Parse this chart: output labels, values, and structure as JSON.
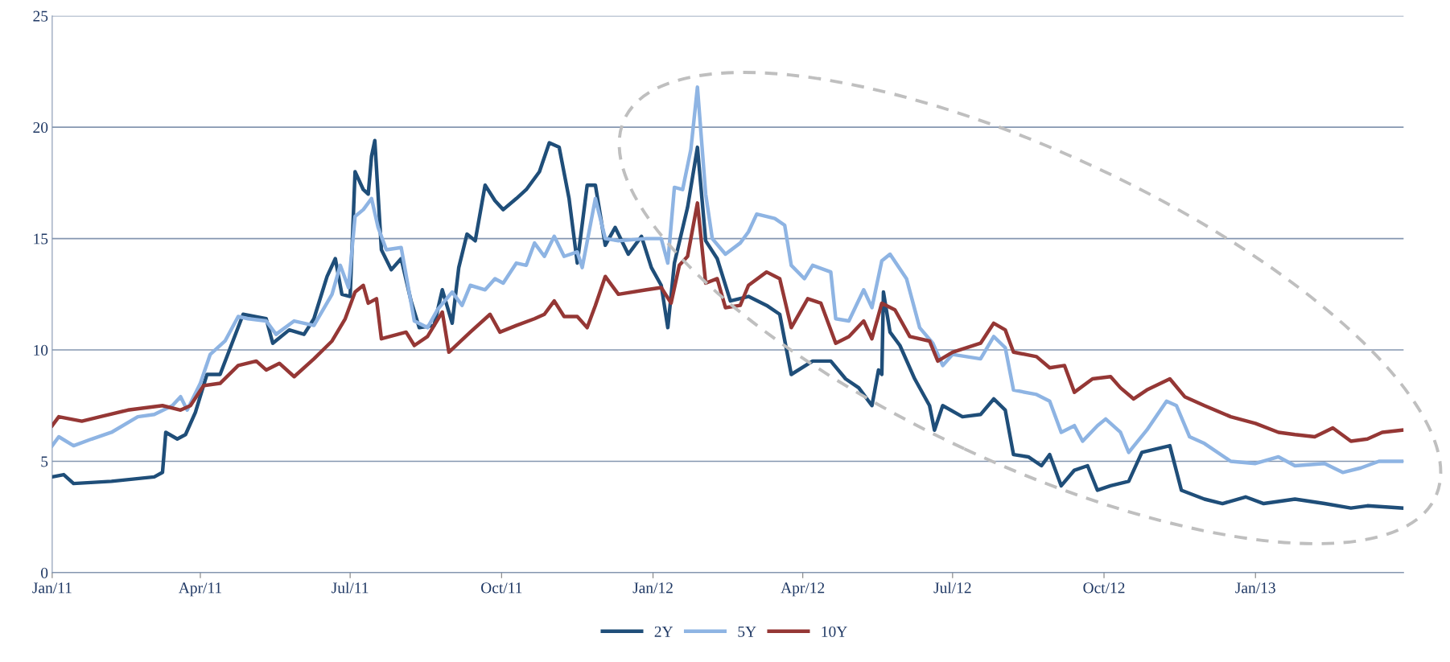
{
  "chart_data": {
    "type": "line",
    "xlim": [
      "2011-01-01",
      "2013-04-01"
    ],
    "xticks": [
      {
        "value": "2011-01-01",
        "label": "Jan/11"
      },
      {
        "value": "2011-04-01",
        "label": "Apr/11"
      },
      {
        "value": "2011-07-01",
        "label": "Jul/11"
      },
      {
        "value": "2011-10-01",
        "label": "Oct/11"
      },
      {
        "value": "2012-01-01",
        "label": "Jan/12"
      },
      {
        "value": "2012-04-01",
        "label": "Apr/12"
      },
      {
        "value": "2012-07-01",
        "label": "Jul/12"
      },
      {
        "value": "2012-10-01",
        "label": "Oct/12"
      },
      {
        "value": "2013-01-01",
        "label": "Jan/13"
      }
    ],
    "ylim": [
      0,
      25
    ],
    "yticks": [
      0,
      5,
      10,
      15,
      20,
      25
    ],
    "grid": "y",
    "legend": "bottom",
    "marker": "none",
    "line_style": "solid",
    "series": [
      {
        "name": "2Y",
        "color": "#1f4e79",
        "x": [
          "2011-01-01",
          "2011-01-08",
          "2011-01-14",
          "2011-02-06",
          "2011-03-04",
          "2011-03-09",
          "2011-03-11",
          "2011-03-18",
          "2011-03-23",
          "2011-03-29",
          "2011-04-05",
          "2011-04-13",
          "2011-04-27",
          "2011-05-11",
          "2011-05-15",
          "2011-05-25",
          "2011-06-03",
          "2011-06-09",
          "2011-06-17",
          "2011-06-22",
          "2011-06-26",
          "2011-07-01",
          "2011-07-04",
          "2011-07-09",
          "2011-07-12",
          "2011-07-14",
          "2011-07-16",
          "2011-07-20",
          "2011-07-26",
          "2011-08-01",
          "2011-08-07",
          "2011-08-12",
          "2011-08-21",
          "2011-08-26",
          "2011-09-01",
          "2011-09-05",
          "2011-09-10",
          "2011-09-15",
          "2011-09-21",
          "2011-09-27",
          "2011-10-02",
          "2011-10-10",
          "2011-10-16",
          "2011-10-24",
          "2011-10-30",
          "2011-11-05",
          "2011-11-11",
          "2011-11-16",
          "2011-11-22",
          "2011-11-27",
          "2011-12-03",
          "2011-12-09",
          "2011-12-17",
          "2011-12-25",
          "2011-12-31",
          "2012-01-06",
          "2012-01-10",
          "2012-01-14",
          "2012-01-22",
          "2012-01-28",
          "2012-02-02",
          "2012-02-09",
          "2012-02-17",
          "2012-02-28",
          "2012-03-10",
          "2012-03-18",
          "2012-03-25",
          "2012-04-07",
          "2012-04-18",
          "2012-04-27",
          "2012-05-05",
          "2012-05-13",
          "2012-05-17",
          "2012-05-19",
          "2012-05-20",
          "2012-05-24",
          "2012-05-30",
          "2012-06-08",
          "2012-06-17",
          "2012-06-20",
          "2012-06-25",
          "2012-07-07",
          "2012-07-18",
          "2012-07-26",
          "2012-08-02",
          "2012-08-07",
          "2012-08-16",
          "2012-08-24",
          "2012-08-29",
          "2012-09-05",
          "2012-09-13",
          "2012-09-21",
          "2012-09-27",
          "2012-10-05",
          "2012-10-16",
          "2012-10-24",
          "2012-11-10",
          "2012-11-17",
          "2012-12-01",
          "2012-12-12",
          "2012-12-26",
          "2013-01-06",
          "2013-01-25",
          "2013-02-12",
          "2013-02-28",
          "2013-03-10",
          "2013-03-31"
        ],
        "values": [
          4.3,
          4.4,
          4.0,
          4.1,
          4.3,
          4.5,
          6.3,
          6.0,
          6.2,
          7.2,
          8.9,
          8.9,
          11.6,
          11.4,
          10.3,
          10.9,
          10.7,
          11.4,
          13.3,
          14.1,
          12.5,
          12.4,
          18.0,
          17.2,
          17.0,
          18.7,
          19.4,
          14.5,
          13.6,
          14.1,
          12.2,
          11.0,
          11.1,
          12.7,
          11.2,
          13.7,
          15.2,
          14.9,
          17.4,
          16.7,
          16.3,
          16.8,
          17.2,
          18.0,
          19.3,
          19.1,
          16.8,
          13.9,
          17.4,
          17.4,
          14.7,
          15.5,
          14.3,
          15.1,
          13.7,
          12.9,
          11.0,
          13.9,
          16.4,
          19.1,
          14.9,
          14.1,
          12.2,
          12.4,
          12.0,
          11.6,
          8.9,
          9.5,
          9.5,
          8.7,
          8.3,
          7.5,
          9.1,
          8.9,
          12.6,
          10.8,
          10.2,
          8.7,
          7.5,
          6.4,
          7.5,
          7.0,
          7.1,
          7.8,
          7.3,
          5.3,
          5.2,
          4.8,
          5.3,
          3.9,
          4.6,
          4.8,
          3.7,
          3.9,
          4.1,
          5.4,
          5.7,
          3.7,
          3.3,
          3.1,
          3.4,
          3.1,
          3.3,
          3.1,
          2.9,
          3.0,
          2.9
        ]
      },
      {
        "name": "5Y",
        "color": "#8eb4e3",
        "x": [
          "2011-01-01",
          "2011-01-05",
          "2011-01-14",
          "2011-01-25",
          "2011-02-06",
          "2011-02-22",
          "2011-03-04",
          "2011-03-15",
          "2011-03-20",
          "2011-03-24",
          "2011-04-01",
          "2011-04-07",
          "2011-04-16",
          "2011-04-24",
          "2011-04-30",
          "2011-05-11",
          "2011-05-17",
          "2011-05-28",
          "2011-06-09",
          "2011-06-20",
          "2011-06-25",
          "2011-06-30",
          "2011-07-04",
          "2011-07-09",
          "2011-07-14",
          "2011-07-18",
          "2011-07-23",
          "2011-08-01",
          "2011-08-09",
          "2011-08-17",
          "2011-08-23",
          "2011-09-01",
          "2011-09-07",
          "2011-09-12",
          "2011-09-21",
          "2011-09-27",
          "2011-10-02",
          "2011-10-10",
          "2011-10-16",
          "2011-10-21",
          "2011-10-27",
          "2011-11-02",
          "2011-11-08",
          "2011-11-16",
          "2011-11-19",
          "2011-11-27",
          "2011-12-03",
          "2011-12-11",
          "2011-12-28",
          "2012-01-06",
          "2012-01-10",
          "2012-01-14",
          "2012-01-19",
          "2012-01-24",
          "2012-01-28",
          "2012-02-02",
          "2012-02-06",
          "2012-02-14",
          "2012-02-23",
          "2012-02-28",
          "2012-03-04",
          "2012-03-15",
          "2012-03-21",
          "2012-03-25",
          "2012-04-02",
          "2012-04-07",
          "2012-04-18",
          "2012-04-21",
          "2012-04-29",
          "2012-05-08",
          "2012-05-13",
          "2012-05-19",
          "2012-05-24",
          "2012-06-03",
          "2012-06-11",
          "2012-06-19",
          "2012-06-25",
          "2012-07-01",
          "2012-07-18",
          "2012-07-26",
          "2012-08-02",
          "2012-08-07",
          "2012-08-21",
          "2012-08-29",
          "2012-09-05",
          "2012-09-13",
          "2012-09-18",
          "2012-09-27",
          "2012-10-02",
          "2012-10-11",
          "2012-10-16",
          "2012-10-27",
          "2012-11-08",
          "2012-11-14",
          "2012-11-22",
          "2012-12-01",
          "2012-12-17",
          "2013-01-01",
          "2013-01-15",
          "2013-01-25",
          "2013-02-12",
          "2013-02-23",
          "2013-03-06",
          "2013-03-17",
          "2013-03-31"
        ],
        "values": [
          5.7,
          6.1,
          5.7,
          6.0,
          6.3,
          7.0,
          7.1,
          7.5,
          7.9,
          7.3,
          8.5,
          9.8,
          10.4,
          11.5,
          11.4,
          11.3,
          10.7,
          11.3,
          11.1,
          12.5,
          13.8,
          12.8,
          16.0,
          16.3,
          16.8,
          15.5,
          14.5,
          14.6,
          11.3,
          11.0,
          11.8,
          12.6,
          12.0,
          12.9,
          12.7,
          13.2,
          13.0,
          13.9,
          13.8,
          14.8,
          14.2,
          15.1,
          14.2,
          14.4,
          13.7,
          16.8,
          15.0,
          14.9,
          15.0,
          15.0,
          13.9,
          17.3,
          17.2,
          19.0,
          21.8,
          17.0,
          15.0,
          14.3,
          14.8,
          15.3,
          16.1,
          15.9,
          15.6,
          13.8,
          13.2,
          13.8,
          13.5,
          11.4,
          11.3,
          12.7,
          11.9,
          14.0,
          14.3,
          13.2,
          11.0,
          10.3,
          9.3,
          9.8,
          9.6,
          10.6,
          10.1,
          8.2,
          8.0,
          7.7,
          6.3,
          6.6,
          5.9,
          6.6,
          6.9,
          6.3,
          5.4,
          6.4,
          7.7,
          7.5,
          6.1,
          5.8,
          5.0,
          4.9,
          5.2,
          4.8,
          4.9,
          4.5,
          4.7,
          5.0,
          5.0
        ]
      },
      {
        "name": "10Y",
        "color": "#953735",
        "x": [
          "2011-01-01",
          "2011-01-05",
          "2011-01-19",
          "2011-01-30",
          "2011-02-16",
          "2011-03-09",
          "2011-03-20",
          "2011-03-26",
          "2011-04-03",
          "2011-04-13",
          "2011-04-24",
          "2011-05-05",
          "2011-05-11",
          "2011-05-19",
          "2011-05-28",
          "2011-06-09",
          "2011-06-20",
          "2011-06-28",
          "2011-07-04",
          "2011-07-09",
          "2011-07-12",
          "2011-07-17",
          "2011-07-20",
          "2011-08-04",
          "2011-08-09",
          "2011-08-17",
          "2011-08-26",
          "2011-08-30",
          "2011-09-12",
          "2011-09-24",
          "2011-09-30",
          "2011-10-10",
          "2011-10-21",
          "2011-10-27",
          "2011-11-02",
          "2011-11-08",
          "2011-11-16",
          "2011-11-22",
          "2011-11-27",
          "2011-12-03",
          "2011-12-11",
          "2011-12-28",
          "2012-01-06",
          "2012-01-12",
          "2012-01-17",
          "2012-01-22",
          "2012-01-28",
          "2012-02-02",
          "2012-02-09",
          "2012-02-14",
          "2012-02-23",
          "2012-02-28",
          "2012-03-10",
          "2012-03-18",
          "2012-03-25",
          "2012-04-04",
          "2012-04-12",
          "2012-04-21",
          "2012-04-29",
          "2012-05-08",
          "2012-05-13",
          "2012-05-19",
          "2012-05-27",
          "2012-06-05",
          "2012-06-17",
          "2012-06-22",
          "2012-07-01",
          "2012-07-18",
          "2012-07-26",
          "2012-08-02",
          "2012-08-07",
          "2012-08-21",
          "2012-08-29",
          "2012-09-07",
          "2012-09-13",
          "2012-09-24",
          "2012-10-05",
          "2012-10-11",
          "2012-10-19",
          "2012-10-27",
          "2012-11-10",
          "2012-11-19",
          "2012-12-01",
          "2012-12-17",
          "2013-01-01",
          "2013-01-15",
          "2013-01-25",
          "2013-02-06",
          "2013-02-17",
          "2013-02-28",
          "2013-03-10",
          "2013-03-19",
          "2013-03-31"
        ],
        "values": [
          6.6,
          7.0,
          6.8,
          7.0,
          7.3,
          7.5,
          7.3,
          7.5,
          8.4,
          8.5,
          9.3,
          9.5,
          9.1,
          9.4,
          8.8,
          9.6,
          10.4,
          11.4,
          12.6,
          12.9,
          12.1,
          12.3,
          10.5,
          10.8,
          10.2,
          10.6,
          11.7,
          9.9,
          10.8,
          11.6,
          10.8,
          11.1,
          11.4,
          11.6,
          12.2,
          11.5,
          11.5,
          11.0,
          12.0,
          13.3,
          12.5,
          12.7,
          12.8,
          12.1,
          13.8,
          14.2,
          16.6,
          13.0,
          13.2,
          11.9,
          12.0,
          12.9,
          13.5,
          13.2,
          11.0,
          12.3,
          12.1,
          10.3,
          10.6,
          11.3,
          10.5,
          12.1,
          11.8,
          10.6,
          10.4,
          9.5,
          9.9,
          10.3,
          11.2,
          10.9,
          9.9,
          9.7,
          9.2,
          9.3,
          8.1,
          8.7,
          8.8,
          8.3,
          7.8,
          8.2,
          8.7,
          7.9,
          7.5,
          7.0,
          6.7,
          6.3,
          6.2,
          6.1,
          6.5,
          5.9,
          6.0,
          6.3,
          6.4
        ]
      }
    ]
  }
}
